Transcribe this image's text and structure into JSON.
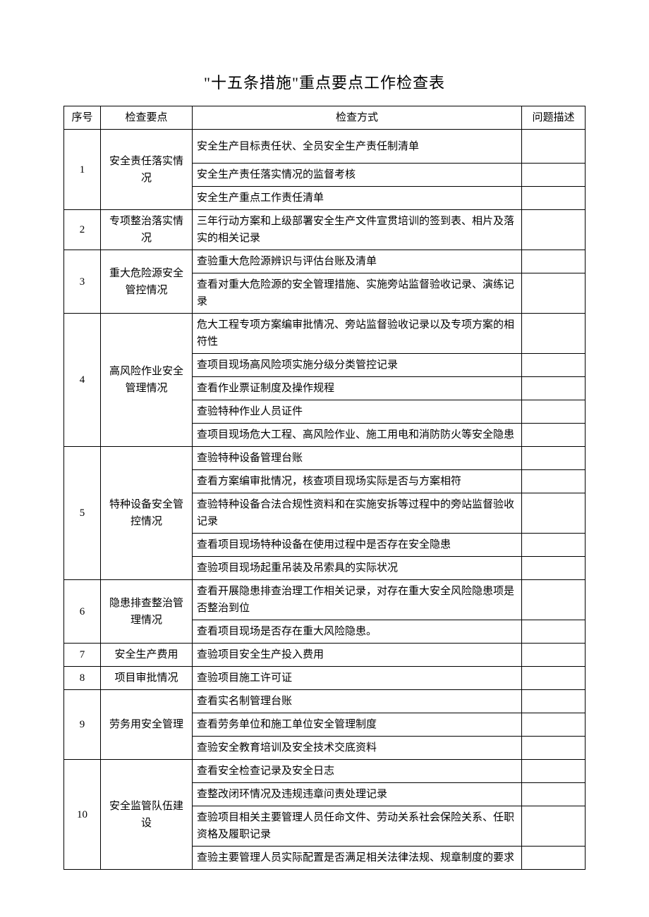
{
  "title": "\"十五条措施\"重点要点工作检查表",
  "headers": {
    "seq": "序号",
    "point": "检查要点",
    "method": "检查方式",
    "desc": "问题描述"
  },
  "rows": [
    {
      "seq": "1",
      "point": "安全责任落实情况",
      "methods": [
        "安全生产目标责任状、全员安全生产责任制清单",
        "安全生产责任落实情况的监督考核",
        "安全生产重点工作责任清单"
      ]
    },
    {
      "seq": "2",
      "point": "专项整治落实情况",
      "methods": [
        "三年行动方案和上级部署安全生产文件宣贯培训的签到表、相片及落实的相关记录"
      ]
    },
    {
      "seq": "3",
      "point": "重大危险源安全管控情况",
      "methods": [
        "查验重大危险源辨识与评估台账及清单",
        "查看对重大危险源的安全管理措施、实施旁站监督验收记录、演练记录"
      ]
    },
    {
      "seq": "4",
      "point": "高风险作业安全管理情况",
      "methods": [
        "危大工程专项方案编审批情况、旁站监督验收记录以及专项方案的相符性",
        "查项目现场高风险项实施分级分类管控记录",
        "查看作业票证制度及操作规程",
        "查验特种作业人员证件",
        "查项目现场危大工程、高风险作业、施工用电和消防防火等安全隐患"
      ]
    },
    {
      "seq": "5",
      "point": "特种设备安全管控情况",
      "methods": [
        "查验特种设备管理台账",
        "查看方案编审批情况，核查项目现场实际是否与方案相符",
        "查验特种设备合法合规性资料和在实施安拆等过程中的旁站监督验收记录",
        "查看项目现场特种设备在使用过程中是否存在安全隐患",
        "查验项目现场起重吊装及吊索具的实际状况"
      ]
    },
    {
      "seq": "6",
      "point": "隐患排查整治管理情况",
      "methods": [
        "查看开展隐患排查治理工作相关记录，对存在重大安全风险隐患项是否整治到位",
        "查看项目现场是否存在重大风险隐患。"
      ]
    },
    {
      "seq": "7",
      "point": "安全生产费用",
      "methods": [
        "查验项目安全生产投入费用"
      ]
    },
    {
      "seq": "8",
      "point": "项目审批情况",
      "methods": [
        "查验项目施工许可证"
      ]
    },
    {
      "seq": "9",
      "point": "劳务用安全管理",
      "methods": [
        "查看实名制管理台账",
        "查看劳务单位和施工单位安全管理制度",
        "查验安全教育培训及安全技术交底资料"
      ]
    },
    {
      "seq": "10",
      "point": "安全监管队伍建设",
      "methods": [
        "查看安全检查记录及安全日志",
        "查整改闭环情况及违规违章问责处理记录",
        "查验项目相关主要管理人员任命文件、劳动关系社会保险关系、任职资格及履职记录",
        "查验主要管理人员实际配置是否满足相关法律法规、规章制度的要求"
      ]
    }
  ]
}
